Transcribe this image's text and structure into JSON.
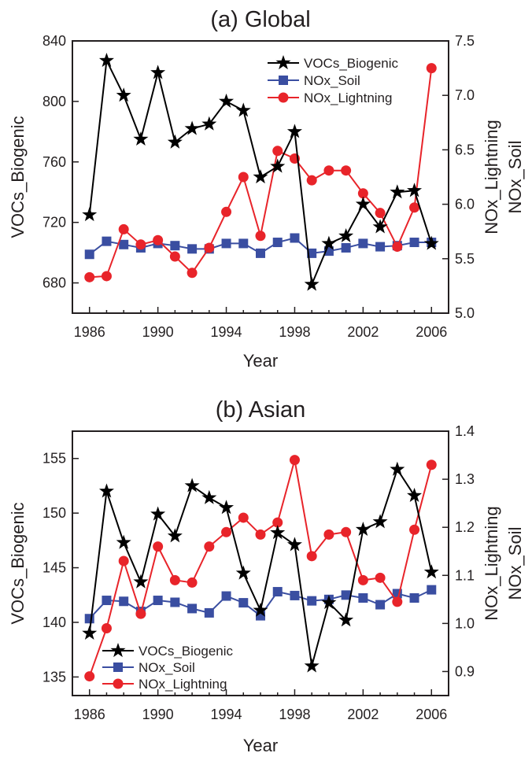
{
  "chart_data": [
    {
      "type": "line",
      "title": "(a) Global",
      "xlabel": "Year",
      "ylabel_left": "VOCs_Biogenic",
      "ylabel_right": [
        "NOx_Lightning",
        "NOx_Soil"
      ],
      "x": [
        1986,
        1987,
        1988,
        1989,
        1990,
        1991,
        1992,
        1993,
        1994,
        1995,
        1996,
        1997,
        1998,
        1999,
        2000,
        2001,
        2002,
        2003,
        2004,
        2005,
        2006
      ],
      "xticks": [
        1986,
        1990,
        1994,
        1998,
        2002,
        2006
      ],
      "xlim": [
        1985,
        2007
      ],
      "ylim_left": [
        660,
        840
      ],
      "yticks_left": [
        680,
        720,
        760,
        800,
        840
      ],
      "ylim_right": [
        5.0,
        7.5
      ],
      "yticks_right": [
        "5.0",
        "5.5",
        "6.0",
        "6.5",
        "7.0",
        "7.5"
      ],
      "legend_position": "top-right",
      "grid": false,
      "series": [
        {
          "name": "VOCs_Biogenic",
          "axis": "left",
          "color": "#000000",
          "marker": "star",
          "values": [
            725,
            827,
            804,
            775,
            819,
            773,
            782,
            785,
            800,
            794,
            750,
            757,
            780,
            679,
            706,
            711,
            732,
            717,
            740,
            741,
            706
          ]
        },
        {
          "name": "NOx_Soil",
          "axis": "right",
          "color": "#3a4ea1",
          "marker": "square",
          "values": [
            5.54,
            5.66,
            5.63,
            5.6,
            5.64,
            5.62,
            5.59,
            5.59,
            5.64,
            5.64,
            5.55,
            5.65,
            5.69,
            5.55,
            5.57,
            5.6,
            5.64,
            5.61,
            5.62,
            5.65,
            5.65
          ]
        },
        {
          "name": "NOx_Lightning",
          "axis": "right",
          "color": "#e8242a",
          "marker": "circle",
          "values": [
            5.33,
            5.34,
            5.77,
            5.63,
            5.67,
            5.52,
            5.37,
            5.6,
            5.93,
            6.25,
            5.71,
            6.49,
            6.42,
            6.22,
            6.31,
            6.31,
            6.1,
            5.92,
            5.61,
            5.97,
            7.25
          ]
        }
      ]
    },
    {
      "type": "line",
      "title": "(b) Asian",
      "xlabel": "Year",
      "ylabel_left": "VOCs_Biogenic",
      "ylabel_right": [
        "NOx_Lightning",
        "NOx_Soil"
      ],
      "x": [
        1986,
        1987,
        1988,
        1989,
        1990,
        1991,
        1992,
        1993,
        1994,
        1995,
        1996,
        1997,
        1998,
        1999,
        2000,
        2001,
        2002,
        2003,
        2004,
        2005,
        2006
      ],
      "xticks": [
        1986,
        1990,
        1994,
        1998,
        2002,
        2006
      ],
      "xlim": [
        1985,
        2007
      ],
      "ylim_left": [
        133.3,
        157.5
      ],
      "yticks_left": [
        135,
        140,
        145,
        150,
        155
      ],
      "ylim_right": [
        0.85,
        1.4
      ],
      "yticks_right": [
        "0.9",
        "1.0",
        "1.1",
        "1.2",
        "1.3",
        "1.4"
      ],
      "legend_position": "bottom-left",
      "grid": false,
      "series": [
        {
          "name": "VOCs_Biogenic",
          "axis": "left",
          "color": "#000000",
          "marker": "star",
          "values": [
            139,
            152,
            147.3,
            143.7,
            149.9,
            147.9,
            152.5,
            151.4,
            150.5,
            144.5,
            141.1,
            148.2,
            147.1,
            136,
            141.8,
            140.2,
            148.5,
            149.2,
            154,
            151.6,
            144.6
          ]
        },
        {
          "name": "NOx_Soil",
          "axis": "right",
          "color": "#3a4ea1",
          "marker": "square",
          "values": [
            1.01,
            1.048,
            1.046,
            1.025,
            1.048,
            1.044,
            1.031,
            1.022,
            1.057,
            1.043,
            1.016,
            1.066,
            1.058,
            1.047,
            1.05,
            1.059,
            1.053,
            1.039,
            1.062,
            1.053,
            1.07
          ]
        },
        {
          "name": "NOx_Lightning",
          "axis": "right",
          "color": "#e8242a",
          "marker": "circle",
          "values": [
            0.89,
            0.99,
            1.13,
            1.02,
            1.16,
            1.09,
            1.085,
            1.16,
            1.19,
            1.22,
            1.185,
            1.21,
            1.34,
            1.14,
            1.185,
            1.19,
            1.09,
            1.095,
            1.045,
            1.195,
            1.33
          ]
        }
      ]
    }
  ]
}
